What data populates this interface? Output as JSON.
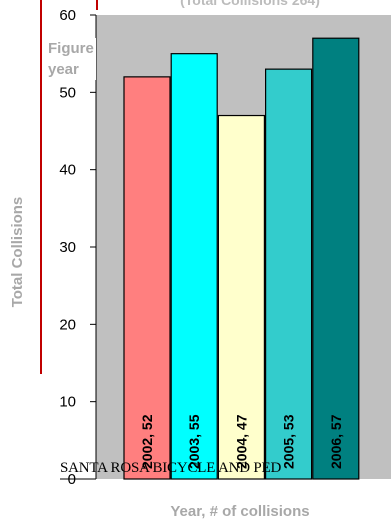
{
  "page": {
    "top_title": "(Total Collisions 264)",
    "figure_label": [
      "Figure",
      "year"
    ],
    "overlay_text": "SANTA ROSA BICYCLE AND PED"
  },
  "chart_data": {
    "type": "bar",
    "categories": [
      "2002",
      "2003",
      "2004",
      "2005",
      "2006"
    ],
    "values": [
      52,
      55,
      47,
      53,
      57
    ],
    "data_labels": [
      "2002, 52",
      "2003, 55",
      "2004, 47",
      "2005, 53",
      "2006, 57"
    ],
    "bar_colors": [
      "#ff7f7f",
      "#00ffff",
      "#ffffcc",
      "#33cccc",
      "#008080"
    ],
    "plot_background": "#c0c0c0",
    "ylim": [
      0,
      60
    ],
    "yticks": [
      0,
      10,
      20,
      30,
      40,
      50,
      60
    ],
    "ytick_labels": [
      "0",
      "10",
      "20",
      "30",
      "40",
      "50",
      "60"
    ],
    "ylabel": "Total Collisions",
    "xlabel": "Year, # of collisions",
    "grid": false,
    "legend": false
  }
}
